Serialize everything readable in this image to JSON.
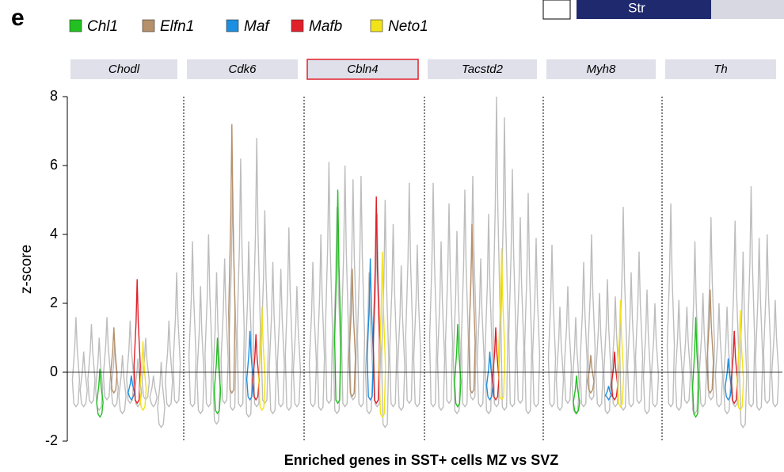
{
  "chart_data": {
    "type": "violin",
    "panel_letter": "e",
    "inset_label": "Str",
    "xlabel": "Enriched genes in SST+ cells MZ vs SVZ",
    "ylabel": "z-score",
    "ylim": [
      -2,
      8
    ],
    "yticks": [
      -2,
      0,
      2,
      4,
      6,
      8
    ],
    "panels": [
      "Chodl",
      "Cdk6",
      "Cbln4",
      "Tacstd2",
      "Myh8",
      "Th"
    ],
    "highlighted_panel": 2,
    "series": [
      {
        "name": "Chl1",
        "color": "#22c020",
        "values": [
          [
            -1.3,
            0.1
          ],
          [
            -1.2,
            1.0
          ],
          [
            -0.9,
            5.3
          ],
          [
            -1.0,
            1.4
          ],
          [
            -1.2,
            -0.1
          ],
          [
            -1.3,
            1.6
          ]
        ]
      },
      {
        "name": "Elfn1",
        "color": "#b5906b",
        "values": [
          [
            -0.6,
            1.3
          ],
          [
            -0.6,
            7.2
          ],
          [
            -0.7,
            3.0
          ],
          [
            -0.6,
            4.3
          ],
          [
            -0.6,
            0.5
          ],
          [
            -0.6,
            2.4
          ]
        ]
      },
      {
        "name": "Maf",
        "color": "#1c8fe0",
        "values": [
          [
            -0.8,
            -0.1
          ],
          [
            -0.8,
            1.2
          ],
          [
            -0.8,
            3.3
          ],
          [
            -0.8,
            0.6
          ],
          [
            -0.8,
            -0.4
          ],
          [
            -0.8,
            0.4
          ]
        ]
      },
      {
        "name": "Mafb",
        "color": "#e0202a",
        "values": [
          [
            -0.9,
            2.7
          ],
          [
            -0.8,
            1.1
          ],
          [
            -0.9,
            5.1
          ],
          [
            -0.8,
            1.3
          ],
          [
            -0.8,
            0.6
          ],
          [
            -0.9,
            1.2
          ]
        ]
      },
      {
        "name": "Neto1",
        "color": "#f2e21a",
        "values": [
          [
            -1.1,
            0.9
          ],
          [
            -1.1,
            1.9
          ],
          [
            -1.3,
            3.5
          ],
          [
            -0.8,
            3.6
          ],
          [
            -1.0,
            2.1
          ],
          [
            -1.1,
            1.8
          ]
        ]
      }
    ],
    "background": {
      "color": "#bdbdbd",
      "values": [
        [
          [
            -1,
            1.6
          ],
          [
            -1,
            0.6
          ],
          [
            -0.9,
            1.4
          ],
          [
            -1.1,
            1.0
          ],
          [
            -0.8,
            1.6
          ],
          [
            -1,
            0.8
          ],
          [
            -1.2,
            0.5
          ],
          [
            -0.9,
            1.5
          ],
          [
            -1,
            0.4
          ],
          [
            -0.8,
            1.0
          ],
          [
            -1,
            -0.1
          ],
          [
            -1.6,
            0.3
          ],
          [
            -1,
            1.5
          ],
          [
            -0.9,
            2.9
          ]
        ],
        [
          [
            -1,
            3.8
          ],
          [
            -1.2,
            2.5
          ],
          [
            -1,
            4.0
          ],
          [
            -1.5,
            2.9
          ],
          [
            -0.9,
            3.3
          ],
          [
            -1.1,
            5.4
          ],
          [
            -1,
            6.2
          ],
          [
            -1.3,
            3.8
          ],
          [
            -1,
            6.8
          ],
          [
            -0.9,
            4.7
          ],
          [
            -1.2,
            3.2
          ],
          [
            -1,
            3.0
          ],
          [
            -1.1,
            4.2
          ],
          [
            -1,
            2.5
          ]
        ],
        [
          [
            -1,
            3.2
          ],
          [
            -1.1,
            4.0
          ],
          [
            -0.9,
            6.1
          ],
          [
            -1.2,
            4.8
          ],
          [
            -1,
            6.0
          ],
          [
            -0.8,
            5.6
          ],
          [
            -1,
            5.7
          ],
          [
            -1.2,
            2.9
          ],
          [
            -1,
            4.6
          ],
          [
            -1.6,
            5.0
          ],
          [
            -1,
            4.3
          ],
          [
            -1.1,
            3.1
          ],
          [
            -0.9,
            5.5
          ],
          [
            -1,
            3.7
          ]
        ],
        [
          [
            -1,
            5.5
          ],
          [
            -1.1,
            3.8
          ],
          [
            -0.9,
            4.9
          ],
          [
            -1.2,
            4.1
          ],
          [
            -1,
            5.3
          ],
          [
            -0.8,
            5.7
          ],
          [
            -1,
            3.3
          ],
          [
            -1.2,
            4.6
          ],
          [
            -1,
            8.0
          ],
          [
            -1.1,
            7.4
          ],
          [
            -1,
            5.9
          ],
          [
            -0.9,
            4.5
          ],
          [
            -1.2,
            5.2
          ],
          [
            -1,
            3.9
          ]
        ],
        [
          [
            -1,
            3.7
          ],
          [
            -1.1,
            1.9
          ],
          [
            -0.9,
            2.5
          ],
          [
            -1.2,
            1.6
          ],
          [
            -1,
            3.2
          ],
          [
            -0.8,
            4.0
          ],
          [
            -1,
            2.3
          ],
          [
            -1.2,
            2.7
          ],
          [
            -1,
            2.2
          ],
          [
            -1.1,
            4.8
          ],
          [
            -1,
            2.9
          ],
          [
            -0.9,
            3.5
          ],
          [
            -1.2,
            2.4
          ],
          [
            -1,
            2.0
          ]
        ],
        [
          [
            -1,
            4.9
          ],
          [
            -1.1,
            2.1
          ],
          [
            -0.9,
            1.9
          ],
          [
            -1.2,
            3.8
          ],
          [
            -1,
            2.3
          ],
          [
            -0.8,
            4.5
          ],
          [
            -1,
            2.0
          ],
          [
            -1.2,
            1.9
          ],
          [
            -1,
            4.4
          ],
          [
            -1.6,
            3.5
          ],
          [
            -1,
            5.4
          ],
          [
            -1.1,
            3.9
          ],
          [
            -0.9,
            4.0
          ],
          [
            -1,
            2.1
          ]
        ]
      ]
    }
  }
}
